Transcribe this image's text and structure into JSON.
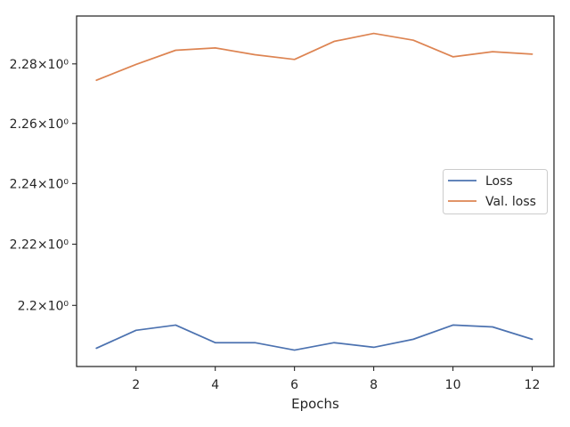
{
  "chart_data": {
    "type": "line",
    "title": "",
    "xlabel": "Epochs",
    "ylabel": "",
    "yscale": "log",
    "x": [
      1,
      2,
      3,
      4,
      5,
      6,
      7,
      8,
      9,
      10,
      11,
      12
    ],
    "xlim": [
      0.5,
      12.55
    ],
    "ylim": [
      2.1802,
      2.2962
    ],
    "xticks": [
      {
        "value": 2,
        "label": "2"
      },
      {
        "value": 4,
        "label": "4"
      },
      {
        "value": 6,
        "label": "6"
      },
      {
        "value": 8,
        "label": "8"
      },
      {
        "value": 10,
        "label": "10"
      },
      {
        "value": 12,
        "label": "12"
      }
    ],
    "yticks": [
      {
        "value": 2.2,
        "label": "2.2×10⁰"
      },
      {
        "value": 2.22,
        "label": "2.22×10⁰"
      },
      {
        "value": 2.24,
        "label": "2.24×10⁰"
      },
      {
        "value": 2.26,
        "label": "2.26×10⁰"
      },
      {
        "value": 2.28,
        "label": "2.28×10⁰"
      }
    ],
    "series": [
      {
        "name": "Loss",
        "color": "#4c72b0",
        "values": [
          2.1861,
          2.1919,
          2.1936,
          2.1879,
          2.1879,
          2.1855,
          2.1879,
          2.1864,
          2.189,
          2.1936,
          2.193,
          2.189
        ]
      },
      {
        "name": "Val. loss",
        "color": "#dd8452",
        "values": [
          2.2745,
          2.2798,
          2.2846,
          2.2854,
          2.2831,
          2.2815,
          2.2876,
          2.2903,
          2.288,
          2.2824,
          2.2841,
          2.2833
        ]
      }
    ],
    "grid": false,
    "legend": "center-right"
  }
}
